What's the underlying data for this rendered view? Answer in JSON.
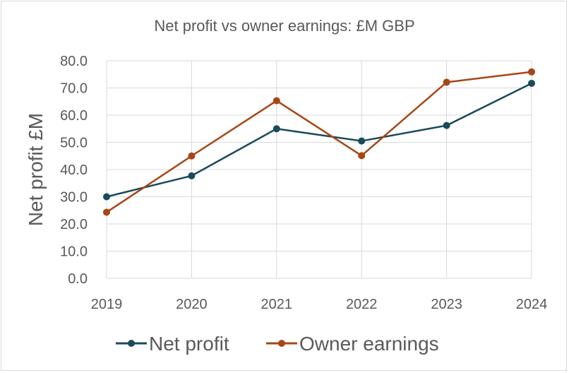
{
  "chart_data": {
    "type": "line",
    "title": "Net profit vs owner earnings: £M GBP",
    "xlabel": "",
    "ylabel": "Net profit £M",
    "categories": [
      "2019",
      "2020",
      "2021",
      "2022",
      "2023",
      "2024"
    ],
    "ylim": [
      0,
      80
    ],
    "ytick_labels": [
      "0.0",
      "10.0",
      "20.0",
      "30.0",
      "40.0",
      "50.0",
      "60.0",
      "70.0",
      "80.0"
    ],
    "grid": true,
    "legend_position": "bottom",
    "series": [
      {
        "name": "Net profit",
        "color": "#1a4a5c",
        "values": [
          30.0,
          37.7,
          55.0,
          50.5,
          56.2,
          71.7
        ]
      },
      {
        "name": "Owner earnings",
        "color": "#a84516",
        "values": [
          24.3,
          45.0,
          65.3,
          45.1,
          72.1,
          75.9
        ]
      }
    ]
  }
}
